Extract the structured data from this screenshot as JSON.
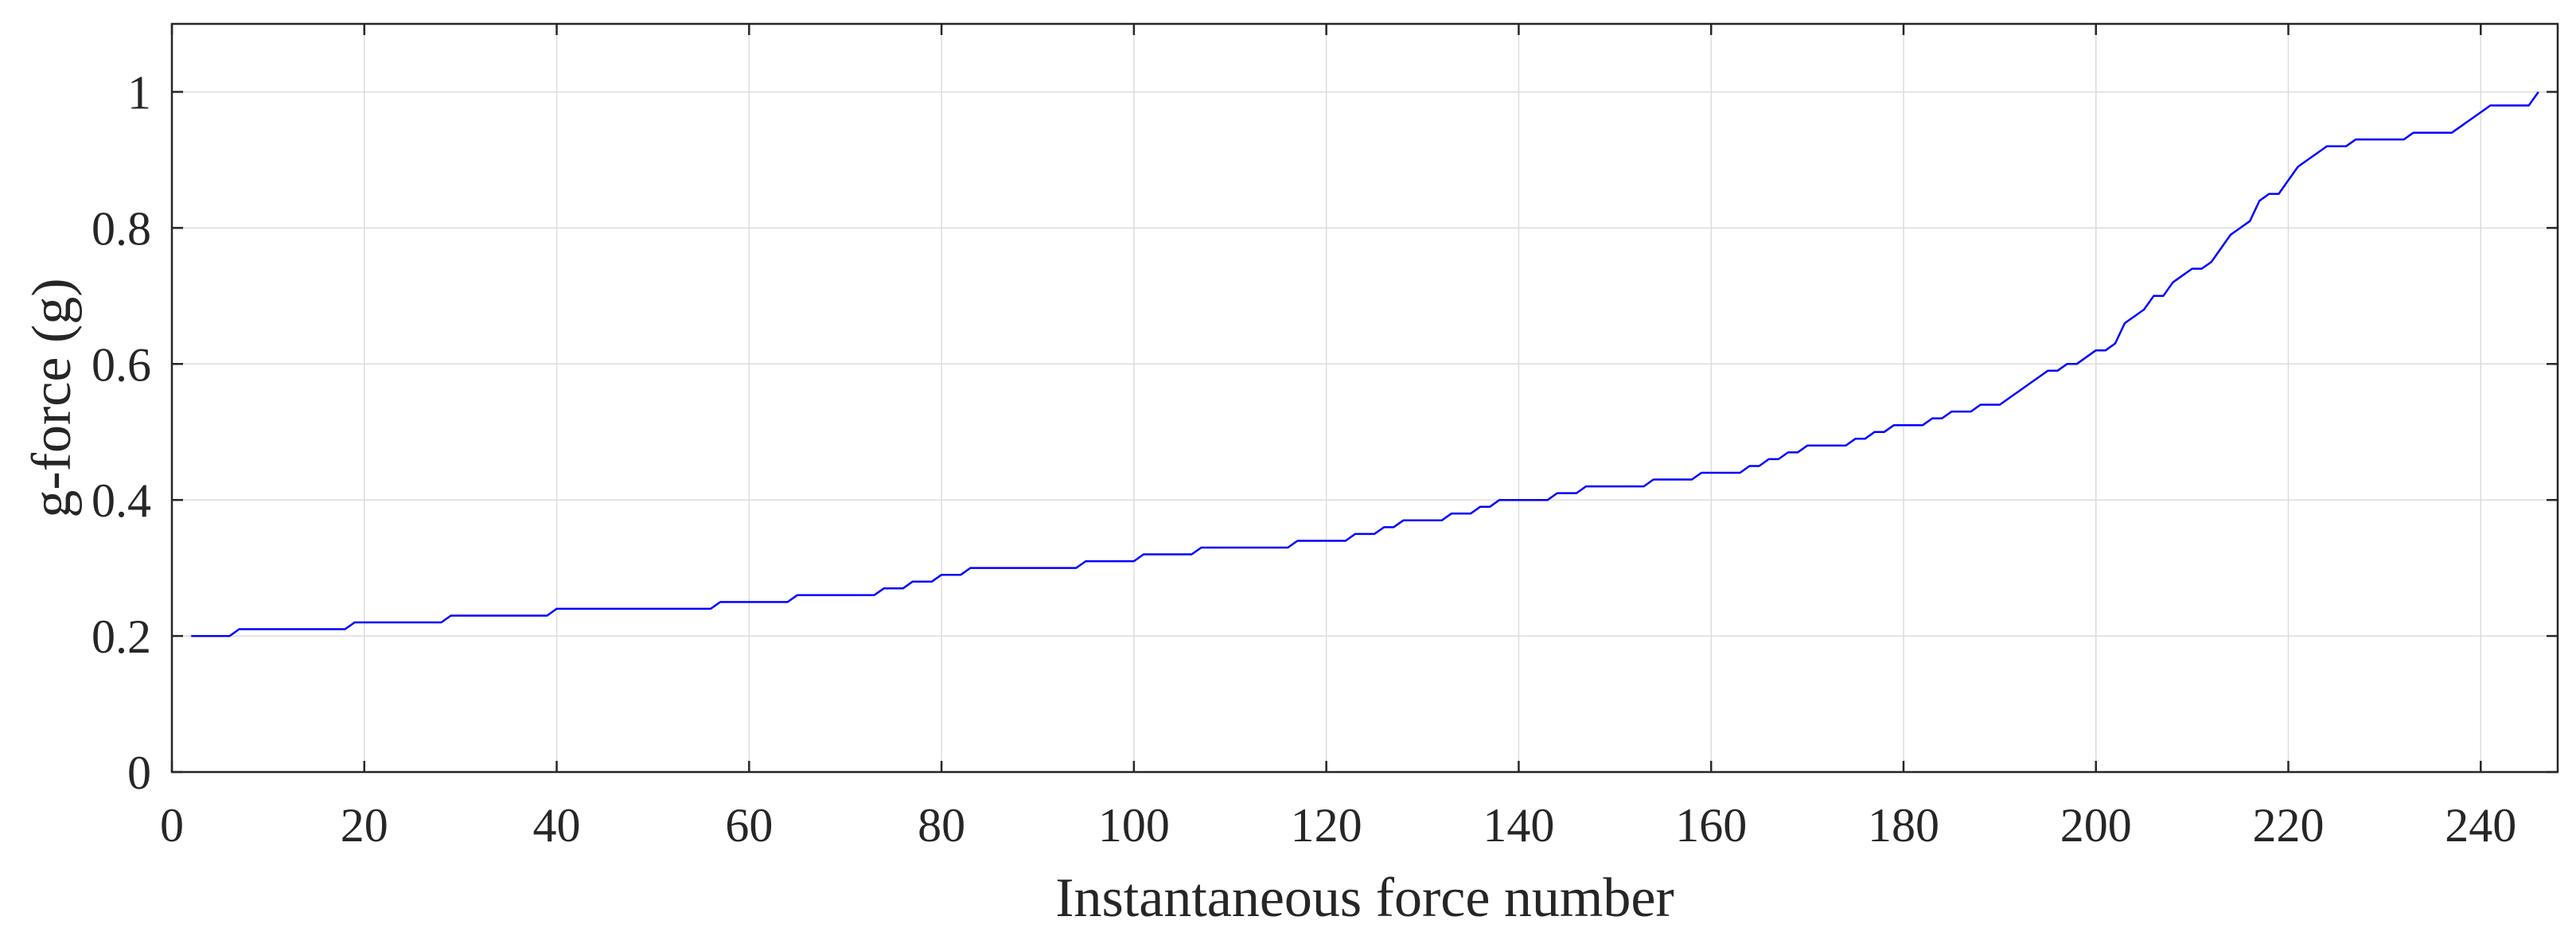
{
  "chart_data": {
    "type": "line",
    "title": "",
    "xlabel": "Instantaneous force number",
    "ylabel": "g-force (g)",
    "xlim": [
      0,
      248
    ],
    "ylim": [
      0,
      1.1
    ],
    "xticks": [
      0,
      20,
      40,
      60,
      80,
      100,
      120,
      140,
      160,
      180,
      200,
      220,
      240
    ],
    "yticks": [
      0,
      0.2,
      0.4,
      0.6,
      0.8,
      1
    ],
    "ytick_labels": [
      "0",
      "0.2",
      "0.4",
      "0.6",
      "0.8",
      "1"
    ],
    "grid": true,
    "series": [
      {
        "color": "#0000ff",
        "x": [
          2,
          6,
          7,
          18,
          19,
          28,
          29,
          39,
          40,
          56,
          57,
          64,
          65,
          73,
          74,
          76,
          77,
          79,
          80,
          82,
          83,
          94,
          95,
          100,
          101,
          106,
          107,
          116,
          117,
          122,
          123,
          125,
          126,
          127,
          128,
          132,
          133,
          135,
          136,
          137,
          138,
          143,
          144,
          146,
          147,
          153,
          154,
          158,
          159,
          163,
          164,
          165,
          166,
          167,
          168,
          169,
          170,
          174,
          175,
          176,
          177,
          178,
          179,
          182,
          183,
          184,
          185,
          187,
          188,
          190,
          191,
          192,
          193,
          194,
          195,
          196,
          197,
          198,
          199,
          200,
          201,
          202,
          203,
          204,
          205,
          206,
          207,
          208,
          209,
          210,
          211,
          212,
          213,
          214,
          215,
          216,
          217,
          218,
          219,
          220,
          221,
          222,
          223,
          224,
          225,
          226,
          227,
          228,
          232,
          233,
          237,
          238,
          239,
          240,
          241,
          245,
          246
        ],
        "y": [
          0.2,
          0.2,
          0.21,
          0.21,
          0.22,
          0.22,
          0.23,
          0.23,
          0.24,
          0.24,
          0.25,
          0.25,
          0.26,
          0.26,
          0.27,
          0.27,
          0.28,
          0.28,
          0.29,
          0.29,
          0.3,
          0.3,
          0.31,
          0.31,
          0.32,
          0.32,
          0.33,
          0.33,
          0.34,
          0.34,
          0.35,
          0.35,
          0.36,
          0.36,
          0.37,
          0.37,
          0.38,
          0.38,
          0.39,
          0.39,
          0.4,
          0.4,
          0.41,
          0.41,
          0.42,
          0.42,
          0.43,
          0.43,
          0.44,
          0.44,
          0.45,
          0.45,
          0.46,
          0.46,
          0.47,
          0.47,
          0.48,
          0.48,
          0.49,
          0.49,
          0.5,
          0.5,
          0.51,
          0.51,
          0.52,
          0.52,
          0.53,
          0.53,
          0.54,
          0.54,
          0.55,
          0.56,
          0.57,
          0.58,
          0.59,
          0.59,
          0.6,
          0.6,
          0.61,
          0.62,
          0.62,
          0.63,
          0.66,
          0.67,
          0.68,
          0.7,
          0.7,
          0.72,
          0.73,
          0.74,
          0.74,
          0.75,
          0.77,
          0.79,
          0.8,
          0.81,
          0.84,
          0.85,
          0.85,
          0.87,
          0.89,
          0.9,
          0.91,
          0.92,
          0.92,
          0.92,
          0.93,
          0.93,
          0.93,
          0.94,
          0.94,
          0.95,
          0.96,
          0.97,
          0.98,
          0.98,
          1.0
        ]
      }
    ]
  }
}
